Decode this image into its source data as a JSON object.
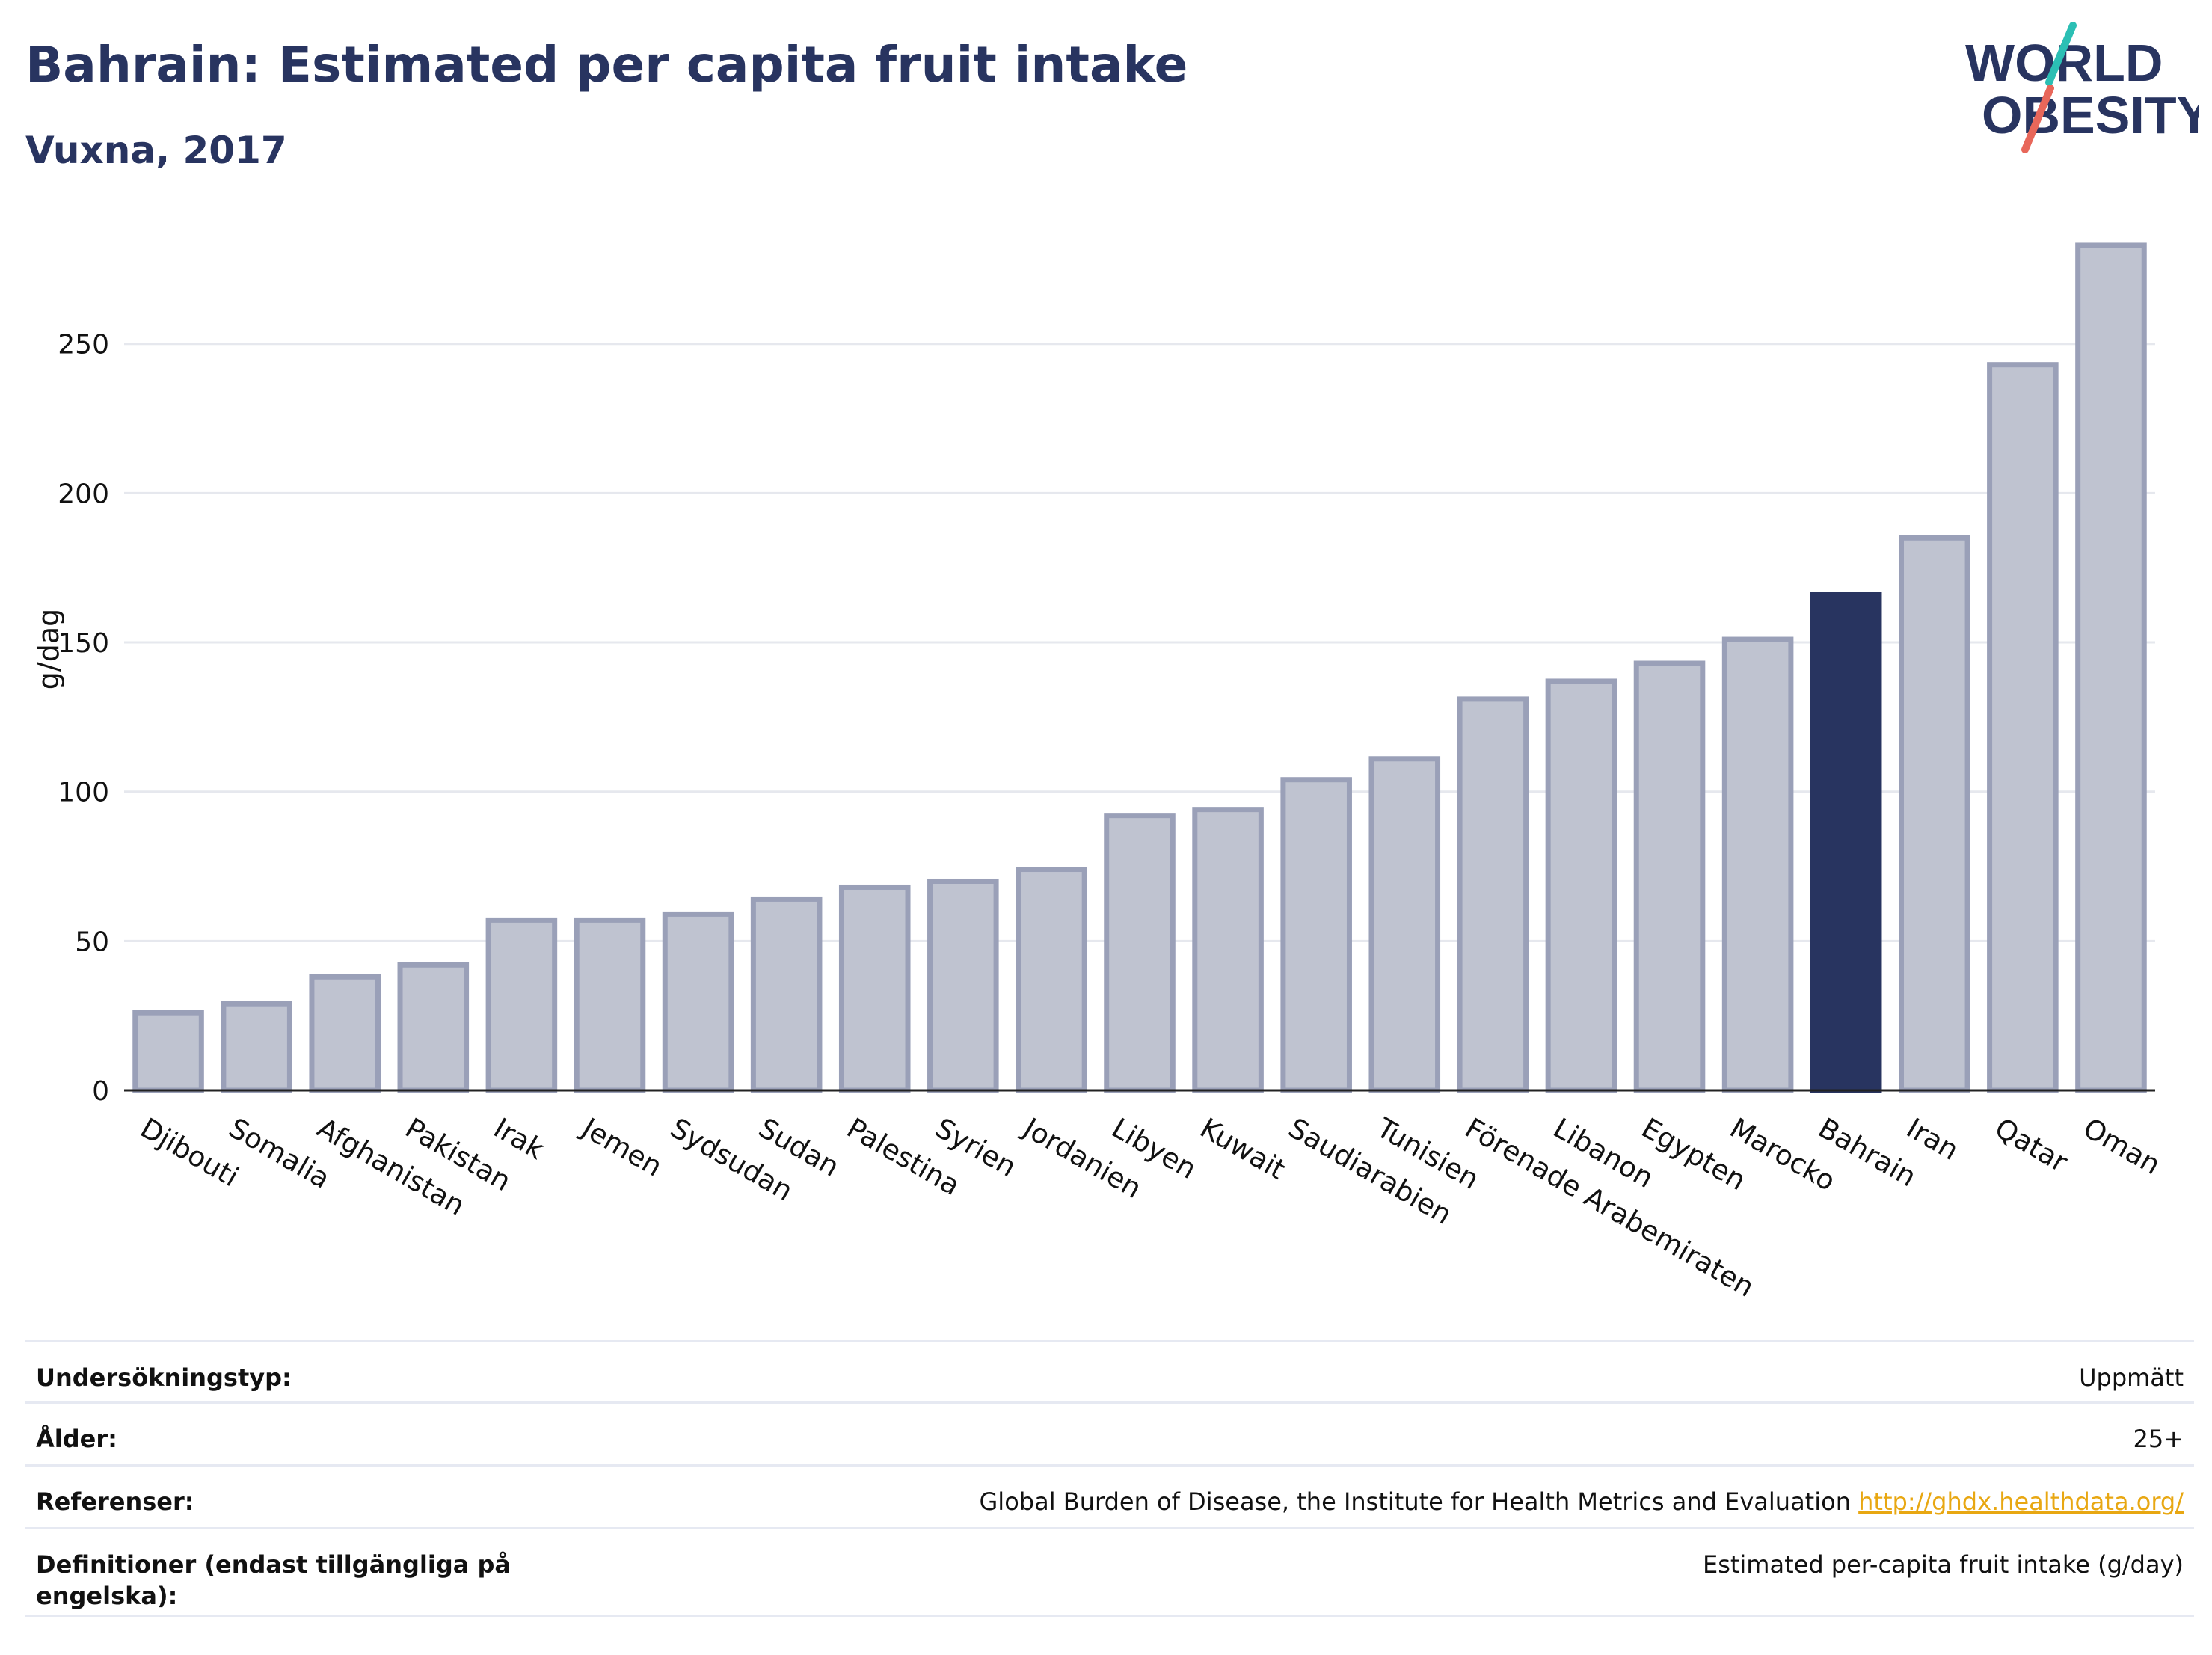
{
  "header": {
    "title": "Bahrain: Estimated per capita fruit intake",
    "subtitle": "Vuxna, 2017"
  },
  "logo": {
    "line1": "WORLD",
    "line2": "OBESITY",
    "accent_colors": [
      "#2bbfb4",
      "#e8675a"
    ]
  },
  "colors": {
    "highlight": "#283460",
    "bar_fill": "#bfc3d0",
    "bar_stroke": "#9aa0b8",
    "link": "#e8a712"
  },
  "chart_data": {
    "type": "bar",
    "title": "",
    "xlabel": "",
    "ylabel": "g/dag",
    "ylim": [
      0,
      290
    ],
    "yticks": [
      0,
      50,
      100,
      150,
      200,
      250
    ],
    "grid": true,
    "highlight_category": "Bahrain",
    "categories": [
      "Djibouti",
      "Somalia",
      "Afghanistan",
      "Pakistan",
      "Irak",
      "Jemen",
      "Sydsudan",
      "Sudan",
      "Palestina",
      "Syrien",
      "Jordanien",
      "Libyen",
      "Kuwait",
      "Saudiarabien",
      "Tunisien",
      "Förenade Arabemiraten",
      "Libanon",
      "Egypten",
      "Marocko",
      "Bahrain",
      "Iran",
      "Qatar",
      "Oman"
    ],
    "values": [
      26,
      29,
      38,
      42,
      57,
      57,
      59,
      64,
      68,
      70,
      74,
      92,
      94,
      104,
      111,
      131,
      137,
      143,
      151,
      166,
      185,
      243,
      283
    ]
  },
  "meta": {
    "rows": [
      {
        "label": "Undersökningstyp:",
        "value": "Uppmätt"
      },
      {
        "label": "Ålder:",
        "value": "25+"
      },
      {
        "label": "Referenser:",
        "value": "Global Burden of Disease, the Institute for Health Metrics and Evaluation",
        "link": "http://ghdx.healthdata.org/"
      },
      {
        "label": "Definitioner (endast tillgängliga på engelska):",
        "value": "Estimated per-capita fruit intake (g/day)"
      }
    ]
  }
}
